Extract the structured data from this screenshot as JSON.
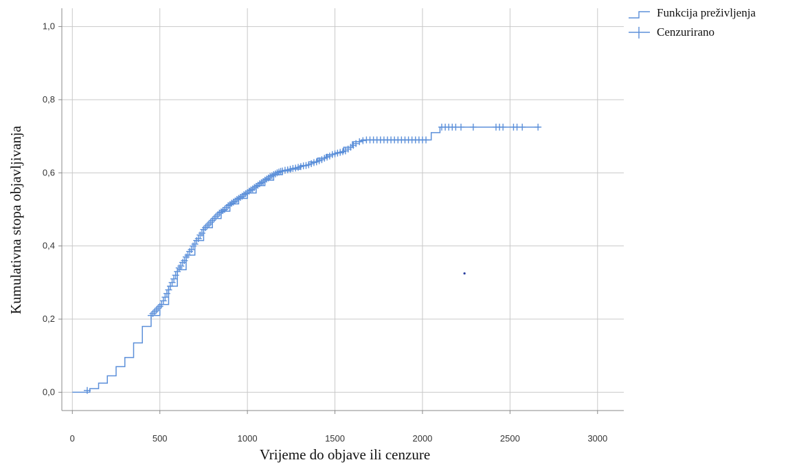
{
  "chart_data": {
    "type": "line",
    "xlabel": "Vrijeme do objave ili cenzure",
    "ylabel": "Kumulativna stopa objavljivanja",
    "xlim": [
      -60,
      3150
    ],
    "ylim": [
      -0.05,
      1.05
    ],
    "x_ticks": [
      0,
      500,
      1000,
      1500,
      2000,
      2500,
      3000
    ],
    "x_tick_labels": [
      "0",
      "500",
      "1000",
      "1500",
      "2000",
      "2500",
      "3000"
    ],
    "y_ticks": [
      0,
      0.2,
      0.4,
      0.6,
      0.8,
      1.0
    ],
    "y_tick_labels": [
      "0,0",
      "0,2",
      "0,4",
      "0,6",
      "0,8",
      "1,0"
    ],
    "grid": true,
    "legend_position": "top-right",
    "legend": [
      "Funkcija preživljenja",
      "Cenzurirano"
    ],
    "series": [
      {
        "name": "Funkcija preživljenja",
        "color": "#5b8fd9",
        "x": [
          0,
          80,
          100,
          150,
          200,
          250,
          300,
          350,
          400,
          450,
          500,
          550,
          600,
          650,
          700,
          750,
          800,
          850,
          900,
          950,
          1000,
          1050,
          1100,
          1150,
          1200,
          1250,
          1300,
          1350,
          1400,
          1450,
          1500,
          1550,
          1600,
          1650,
          1700,
          1800,
          1900,
          2000,
          2050,
          2100,
          2200,
          2300,
          2400,
          2500,
          2600,
          2670
        ],
        "y": [
          0.0,
          0.0,
          0.01,
          0.025,
          0.045,
          0.07,
          0.095,
          0.135,
          0.18,
          0.21,
          0.24,
          0.29,
          0.335,
          0.375,
          0.415,
          0.45,
          0.475,
          0.495,
          0.515,
          0.53,
          0.545,
          0.565,
          0.58,
          0.595,
          0.605,
          0.61,
          0.62,
          0.63,
          0.64,
          0.65,
          0.655,
          0.67,
          0.685,
          0.69,
          0.69,
          0.69,
          0.69,
          0.69,
          0.71,
          0.725,
          0.725,
          0.725,
          0.725,
          0.725,
          0.725,
          0.725
        ]
      }
    ],
    "censored": {
      "name": "Cenzurirano",
      "x": [
        85,
        450,
        460,
        470,
        480,
        490,
        500,
        510,
        520,
        530,
        540,
        550,
        560,
        570,
        580,
        590,
        600,
        610,
        620,
        630,
        640,
        650,
        660,
        670,
        680,
        690,
        700,
        710,
        720,
        730,
        740,
        750,
        760,
        770,
        780,
        790,
        800,
        810,
        820,
        830,
        840,
        850,
        860,
        870,
        880,
        890,
        900,
        910,
        920,
        930,
        940,
        950,
        960,
        970,
        980,
        990,
        1000,
        1010,
        1020,
        1030,
        1040,
        1050,
        1060,
        1070,
        1080,
        1090,
        1100,
        1110,
        1120,
        1130,
        1140,
        1150,
        1160,
        1170,
        1180,
        1190,
        1200,
        1215,
        1230,
        1245,
        1260,
        1275,
        1290,
        1305,
        1320,
        1335,
        1350,
        1365,
        1380,
        1395,
        1410,
        1425,
        1440,
        1455,
        1470,
        1485,
        1500,
        1515,
        1530,
        1545,
        1560,
        1575,
        1590,
        1605,
        1620,
        1640,
        1660,
        1680,
        1700,
        1720,
        1740,
        1760,
        1780,
        1800,
        1820,
        1840,
        1860,
        1880,
        1900,
        1920,
        1940,
        1960,
        1980,
        2000,
        2020,
        2110,
        2130,
        2150,
        2170,
        2190,
        2220,
        2290,
        2420,
        2440,
        2460,
        2520,
        2540,
        2570,
        2660
      ],
      "y": [
        0.005,
        0.21,
        0.215,
        0.22,
        0.225,
        0.23,
        0.235,
        0.24,
        0.25,
        0.26,
        0.27,
        0.28,
        0.29,
        0.3,
        0.31,
        0.32,
        0.33,
        0.34,
        0.345,
        0.355,
        0.36,
        0.37,
        0.375,
        0.385,
        0.39,
        0.4,
        0.405,
        0.415,
        0.42,
        0.43,
        0.435,
        0.445,
        0.45,
        0.455,
        0.46,
        0.465,
        0.47,
        0.475,
        0.48,
        0.485,
        0.49,
        0.493,
        0.497,
        0.5,
        0.505,
        0.51,
        0.513,
        0.517,
        0.52,
        0.523,
        0.527,
        0.53,
        0.533,
        0.536,
        0.54,
        0.543,
        0.546,
        0.55,
        0.553,
        0.556,
        0.56,
        0.563,
        0.566,
        0.57,
        0.573,
        0.576,
        0.58,
        0.583,
        0.586,
        0.59,
        0.592,
        0.595,
        0.597,
        0.6,
        0.602,
        0.604,
        0.605,
        0.607,
        0.608,
        0.61,
        0.612,
        0.613,
        0.615,
        0.617,
        0.619,
        0.62,
        0.622,
        0.625,
        0.628,
        0.63,
        0.633,
        0.636,
        0.64,
        0.643,
        0.646,
        0.65,
        0.652,
        0.654,
        0.656,
        0.658,
        0.66,
        0.665,
        0.67,
        0.675,
        0.68,
        0.685,
        0.688,
        0.69,
        0.69,
        0.69,
        0.69,
        0.69,
        0.69,
        0.69,
        0.69,
        0.69,
        0.69,
        0.69,
        0.69,
        0.69,
        0.69,
        0.69,
        0.69,
        0.69,
        0.69,
        0.725,
        0.725,
        0.725,
        0.725,
        0.725,
        0.725,
        0.725,
        0.725,
        0.725,
        0.725,
        0.725,
        0.725,
        0.725,
        0.725
      ]
    },
    "annotations": [
      {
        "x": 2240,
        "y": 0.325
      }
    ]
  },
  "colors": {
    "line": "#5b8fd9",
    "grid": "#c8c8c8",
    "axis": "#888888",
    "annotation_dot": "#2a3fa0"
  }
}
